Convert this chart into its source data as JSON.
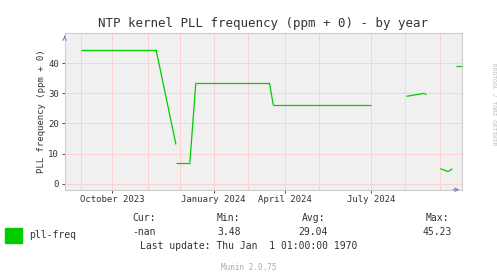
{
  "title": "NTP kernel PLL frequency (ppm + 0) - by year",
  "ylabel": "PLL frequency (ppm + 0)",
  "ylim": [
    -2,
    50
  ],
  "yticks": [
    0,
    10,
    20,
    30,
    40
  ],
  "bg_color": "#FFFFFF",
  "plot_bg_color": "#F0F0F0",
  "grid_color": "#FFCCCC",
  "line_color": "#00CC00",
  "axis_color": "#CCCCCC",
  "arrow_color": "#8080C0",
  "legend_label": "pll-freq",
  "legend_color": "#00CC00",
  "min_val": "3.48",
  "avg_val": "29.04",
  "max_val": "45.23",
  "last_update": "Last update: Thu Jan  1 01:00:00 1970",
  "munin_text": "Munin 2.0.75",
  "watermark": "RRDTOOL / TOBI OETIKER",
  "xtick_positions": [
    0.12,
    0.375,
    0.555,
    0.77
  ],
  "xtick_labels": [
    "October 2023",
    "January 2024",
    "April 2024",
    "July 2024"
  ],
  "segments": [
    {
      "x": [
        0.04,
        0.23
      ],
      "y": [
        44.5,
        44.5
      ]
    },
    {
      "x": [
        0.23,
        0.28
      ],
      "y": [
        44.5,
        13.0
      ]
    },
    {
      "x": [
        0.28,
        0.315
      ],
      "y": [
        7.0,
        7.0
      ]
    },
    {
      "x": [
        0.315,
        0.33
      ],
      "y": [
        7.0,
        33.5
      ]
    },
    {
      "x": [
        0.33,
        0.5
      ],
      "y": [
        33.5,
        33.5
      ]
    },
    {
      "x": [
        0.5,
        0.515
      ],
      "y": [
        33.5,
        33.5
      ]
    },
    {
      "x": [
        0.515,
        0.525
      ],
      "y": [
        33.5,
        26.0
      ]
    },
    {
      "x": [
        0.525,
        0.77
      ],
      "y": [
        26.0,
        26.0
      ]
    },
    {
      "x": [
        0.86,
        0.905
      ],
      "y": [
        29.0,
        30.0
      ]
    },
    {
      "x": [
        0.905,
        0.91
      ],
      "y": [
        30.0,
        29.5
      ]
    },
    {
      "x": [
        0.945,
        0.965
      ],
      "y": [
        5.0,
        4.0
      ]
    },
    {
      "x": [
        0.965,
        0.975
      ],
      "y": [
        4.0,
        5.0
      ]
    },
    {
      "x": [
        0.985,
        1.0
      ],
      "y": [
        39.0,
        39.0
      ]
    }
  ],
  "vgrid_positions": [
    0.04,
    0.12,
    0.21,
    0.29,
    0.375,
    0.46,
    0.555,
    0.64,
    0.77,
    0.855,
    0.945
  ],
  "hgrid_positions": [
    0,
    10,
    20,
    30,
    40
  ]
}
